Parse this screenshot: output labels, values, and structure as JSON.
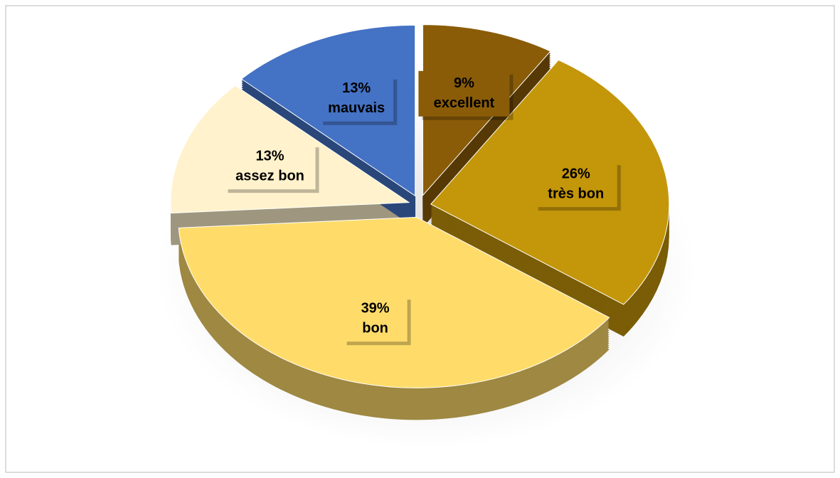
{
  "chart_data": {
    "type": "pie",
    "categories": [
      "excellent",
      "très bon",
      "bon",
      "assez bon",
      "mauvais"
    ],
    "values": [
      9,
      26,
      39,
      13,
      13
    ],
    "value_labels": [
      "9%",
      "26%",
      "39%",
      "13%",
      "13%"
    ],
    "colors": [
      "#8a5c08",
      "#c4960a",
      "#ffdc6a",
      "#fff2cc",
      "#4472c4"
    ]
  }
}
